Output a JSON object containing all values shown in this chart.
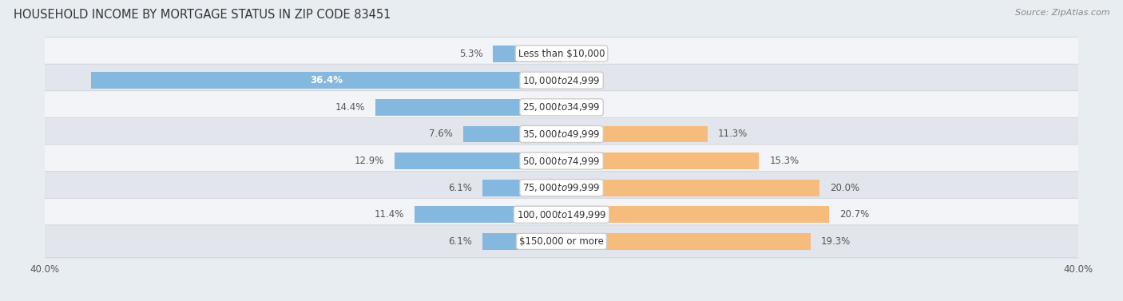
{
  "title": "HOUSEHOLD INCOME BY MORTGAGE STATUS IN ZIP CODE 83451",
  "source": "Source: ZipAtlas.com",
  "categories": [
    "Less than $10,000",
    "$10,000 to $24,999",
    "$25,000 to $34,999",
    "$35,000 to $49,999",
    "$50,000 to $74,999",
    "$75,000 to $99,999",
    "$100,000 to $149,999",
    "$150,000 or more"
  ],
  "without_mortgage": [
    5.3,
    36.4,
    14.4,
    7.6,
    12.9,
    6.1,
    11.4,
    6.1
  ],
  "with_mortgage": [
    0.0,
    0.0,
    0.0,
    11.3,
    15.3,
    20.0,
    20.7,
    19.3
  ],
  "color_without": "#85b8de",
  "color_with": "#f5bc7e",
  "axis_limit": 40.0,
  "background_color": "#e8edf2",
  "row_light": "#f2f4f7",
  "row_dark": "#e2e6ec",
  "title_fontsize": 10.5,
  "source_fontsize": 8,
  "label_fontsize": 8.5,
  "category_fontsize": 8.5,
  "legend_fontsize": 9,
  "axis_label_fontsize": 8.5
}
